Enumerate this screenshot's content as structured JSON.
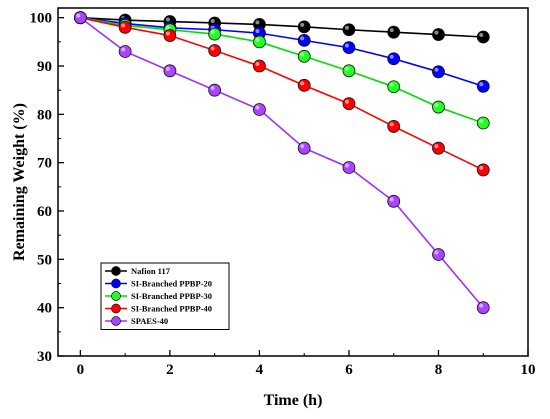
{
  "chart_data": {
    "type": "line",
    "xlabel": "Time (h)",
    "ylabel": "Remaining Weight (%)",
    "xlim": [
      -0.5,
      10
    ],
    "ylim": [
      30,
      102
    ],
    "xticks": [
      0,
      2,
      4,
      6,
      8,
      10
    ],
    "yticks": [
      30,
      40,
      50,
      60,
      70,
      80,
      90,
      100
    ],
    "grid": false,
    "legend_position": "bottom-left",
    "x": [
      0,
      1,
      2,
      3,
      4,
      5,
      6,
      7,
      8,
      9
    ],
    "series": [
      {
        "name": "Nafion 117",
        "color": "#000000",
        "marker_color": "#000000",
        "values": [
          100,
          99.5,
          99.2,
          98.9,
          98.6,
          98.1,
          97.5,
          97.0,
          96.5,
          96.0
        ]
      },
      {
        "name": "SI-Branched PPBP-20",
        "color": "#0000ff",
        "marker_color": "#0000ff",
        "values": [
          100,
          98.8,
          97.9,
          97.5,
          96.8,
          95.3,
          93.8,
          91.5,
          88.8,
          85.8
        ]
      },
      {
        "name": "SI-Branched PPBP-30",
        "color": "#00dd00",
        "marker_color": "#22ff22",
        "values": [
          100,
          98.4,
          97.5,
          96.6,
          95.0,
          92.0,
          89.0,
          85.7,
          81.5,
          78.2
        ]
      },
      {
        "name": "SI-Branched PPBP-40",
        "color": "#ff0000",
        "marker_color": "#ff0000",
        "values": [
          100,
          98.0,
          96.3,
          93.2,
          90.0,
          86.0,
          82.2,
          77.5,
          73.0,
          68.5
        ]
      },
      {
        "name": "SPAES-40",
        "color": "#9933ff",
        "marker_color": "#aa44ff",
        "values": [
          100,
          93.0,
          89.0,
          85.0,
          81.0,
          73.0,
          69.0,
          62.0,
          51.0,
          40.0
        ]
      }
    ]
  }
}
